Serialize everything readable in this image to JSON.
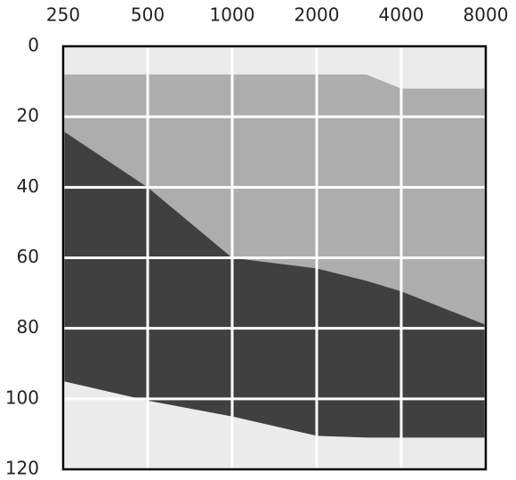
{
  "chart_data": {
    "type": "band",
    "x": [
      250,
      500,
      1000,
      2000,
      3000,
      4000,
      8000
    ],
    "series": [
      {
        "color": "#adadad",
        "values": [
          8,
          8,
          8,
          8,
          8,
          12,
          12
        ],
        "bottom": [
          24,
          40,
          60,
          63,
          66.5,
          69.5,
          79
        ]
      },
      {
        "color": "#404040",
        "values": [
          24,
          40,
          60,
          63,
          66.5,
          69.5,
          79
        ],
        "bottom": [
          95,
          100.5,
          105,
          110.5,
          111,
          111,
          111
        ]
      }
    ],
    "background": "#ebebeb",
    "xlim": [
      250,
      8000
    ],
    "xticks": [
      250,
      500,
      1000,
      2000,
      4000,
      8000
    ],
    "xlog": true,
    "ylim": [
      0,
      120
    ],
    "yticks": [
      0,
      20,
      40,
      60,
      80,
      100,
      120
    ],
    "yinverted": true,
    "grid": true
  }
}
